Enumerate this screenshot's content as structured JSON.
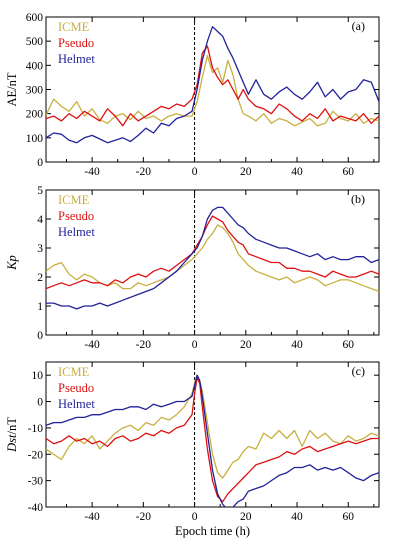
{
  "colors": {
    "ICME": "#c8b040",
    "Pseudo": "#dd1111",
    "Helmet": "#22229a"
  },
  "chart_data": [
    {
      "type": "line",
      "panel_label": "(a)",
      "ylabel": "AE/nT",
      "ylabel_italic": false,
      "xlim": [
        -58,
        72
      ],
      "ylim": [
        0,
        600
      ],
      "yticks": [
        0,
        100,
        200,
        300,
        400,
        500,
        600
      ],
      "ytick_labels": [
        "0",
        "100",
        "200",
        "300",
        "400",
        "500",
        "600"
      ],
      "legend": "top-left",
      "xtick_labels_shown": true,
      "series": [
        {
          "name": "ICME",
          "x": [
            -58,
            -55,
            -52,
            -49,
            -46,
            -43,
            -40,
            -37,
            -34,
            -31,
            -28,
            -25,
            -22,
            -19,
            -16,
            -13,
            -10,
            -7,
            -4,
            -1,
            1,
            3,
            5,
            7,
            9,
            11,
            13,
            15,
            17,
            19,
            21,
            24,
            27,
            30,
            33,
            36,
            39,
            42,
            45,
            48,
            51,
            54,
            57,
            60,
            63,
            66,
            69,
            72
          ],
          "y": [
            195,
            260,
            230,
            210,
            250,
            190,
            220,
            175,
            160,
            190,
            200,
            175,
            210,
            180,
            190,
            170,
            190,
            200,
            190,
            190,
            250,
            350,
            440,
            370,
            390,
            330,
            420,
            360,
            260,
            200,
            190,
            170,
            200,
            160,
            180,
            170,
            150,
            165,
            180,
            150,
            160,
            210,
            180,
            170,
            200,
            160,
            180,
            170
          ]
        },
        {
          "name": "Pseudo",
          "x": [
            -58,
            -55,
            -52,
            -49,
            -46,
            -43,
            -40,
            -37,
            -34,
            -31,
            -28,
            -25,
            -22,
            -19,
            -16,
            -13,
            -10,
            -7,
            -4,
            -1,
            1,
            3,
            5,
            7,
            9,
            11,
            13,
            15,
            17,
            19,
            21,
            24,
            27,
            30,
            33,
            36,
            39,
            42,
            45,
            48,
            51,
            54,
            57,
            60,
            63,
            66,
            69,
            72
          ],
          "y": [
            180,
            190,
            170,
            200,
            180,
            210,
            190,
            170,
            220,
            190,
            150,
            200,
            170,
            190,
            210,
            230,
            220,
            240,
            230,
            260,
            320,
            450,
            480,
            390,
            350,
            320,
            340,
            300,
            260,
            300,
            260,
            230,
            220,
            200,
            240,
            220,
            190,
            170,
            200,
            180,
            220,
            170,
            190,
            180,
            170,
            200,
            160,
            190
          ]
        },
        {
          "name": "Helmet",
          "x": [
            -58,
            -55,
            -52,
            -49,
            -46,
            -43,
            -40,
            -37,
            -34,
            -31,
            -28,
            -25,
            -22,
            -19,
            -16,
            -13,
            -10,
            -7,
            -4,
            -1,
            1,
            3,
            5,
            7,
            9,
            11,
            13,
            15,
            17,
            19,
            21,
            24,
            27,
            30,
            33,
            36,
            39,
            42,
            45,
            48,
            51,
            54,
            57,
            60,
            63,
            66,
            69,
            72
          ],
          "y": [
            100,
            120,
            115,
            90,
            80,
            100,
            110,
            95,
            80,
            90,
            100,
            85,
            110,
            140,
            120,
            160,
            150,
            180,
            190,
            210,
            300,
            420,
            500,
            560,
            540,
            520,
            470,
            430,
            380,
            330,
            280,
            340,
            280,
            260,
            290,
            310,
            280,
            260,
            290,
            330,
            270,
            300,
            260,
            290,
            300,
            340,
            330,
            250
          ]
        }
      ]
    },
    {
      "type": "line",
      "panel_label": "(b)",
      "ylabel": "Kp",
      "ylabel_italic": true,
      "xlim": [
        -58,
        72
      ],
      "ylim": [
        0,
        5
      ],
      "yticks": [
        0,
        1,
        2,
        3,
        4,
        5
      ],
      "ytick_labels": [
        "0",
        "1",
        "2",
        "3",
        "4",
        "5"
      ],
      "legend": "top-left",
      "xtick_labels_shown": true,
      "series": [
        {
          "name": "ICME",
          "x": [
            -58,
            -55,
            -52,
            -49,
            -46,
            -43,
            -40,
            -37,
            -34,
            -31,
            -28,
            -25,
            -22,
            -19,
            -16,
            -13,
            -10,
            -7,
            -4,
            -1,
            1,
            3,
            5,
            7,
            9,
            11,
            13,
            15,
            17,
            19,
            21,
            24,
            27,
            30,
            33,
            36,
            39,
            42,
            45,
            48,
            51,
            54,
            57,
            60,
            63,
            66,
            69,
            72
          ],
          "y": [
            2.2,
            2.4,
            2.5,
            2.1,
            1.9,
            2.1,
            2.0,
            1.8,
            1.7,
            1.8,
            1.6,
            1.6,
            1.8,
            1.7,
            1.8,
            1.9,
            2.0,
            2.2,
            2.4,
            2.6,
            2.8,
            3.0,
            3.3,
            3.5,
            3.8,
            3.7,
            3.5,
            3.2,
            2.8,
            2.6,
            2.4,
            2.2,
            2.1,
            2.0,
            1.9,
            2.0,
            1.8,
            1.9,
            2.0,
            1.9,
            1.7,
            1.8,
            1.9,
            1.9,
            1.8,
            1.7,
            1.6,
            1.5
          ]
        },
        {
          "name": "Pseudo",
          "x": [
            -58,
            -55,
            -52,
            -49,
            -46,
            -43,
            -40,
            -37,
            -34,
            -31,
            -28,
            -25,
            -22,
            -19,
            -16,
            -13,
            -10,
            -7,
            -4,
            -1,
            1,
            3,
            5,
            7,
            9,
            11,
            13,
            15,
            17,
            19,
            21,
            24,
            27,
            30,
            33,
            36,
            39,
            42,
            45,
            48,
            51,
            54,
            57,
            60,
            63,
            66,
            69,
            72
          ],
          "y": [
            1.6,
            1.7,
            1.8,
            1.7,
            1.8,
            1.9,
            1.8,
            1.8,
            1.7,
            1.9,
            1.8,
            2.0,
            2.1,
            2.0,
            2.2,
            2.3,
            2.2,
            2.4,
            2.6,
            2.8,
            3.1,
            3.4,
            3.8,
            4.1,
            4.0,
            3.9,
            3.6,
            3.4,
            3.2,
            3.1,
            2.8,
            2.7,
            2.6,
            2.5,
            2.5,
            2.3,
            2.3,
            2.2,
            2.2,
            2.1,
            2.0,
            2.2,
            2.1,
            2.0,
            2.0,
            2.1,
            2.2,
            2.1
          ]
        },
        {
          "name": "Helmet",
          "x": [
            -58,
            -55,
            -52,
            -49,
            -46,
            -43,
            -40,
            -37,
            -34,
            -31,
            -28,
            -25,
            -22,
            -19,
            -16,
            -13,
            -10,
            -7,
            -4,
            -1,
            1,
            3,
            5,
            7,
            9,
            11,
            13,
            15,
            17,
            19,
            21,
            24,
            27,
            30,
            33,
            36,
            39,
            42,
            45,
            48,
            51,
            54,
            57,
            60,
            63,
            66,
            69,
            72
          ],
          "y": [
            1.1,
            1.1,
            1.0,
            1.0,
            0.9,
            1.0,
            1.0,
            1.1,
            1.0,
            1.1,
            1.2,
            1.3,
            1.4,
            1.5,
            1.6,
            1.8,
            2.0,
            2.2,
            2.5,
            2.8,
            3.0,
            3.4,
            4.0,
            4.3,
            4.4,
            4.4,
            4.2,
            4.0,
            3.8,
            3.7,
            3.5,
            3.3,
            3.2,
            3.1,
            3.0,
            3.0,
            2.9,
            2.8,
            2.7,
            2.8,
            2.6,
            2.7,
            2.6,
            2.6,
            2.7,
            2.7,
            2.5,
            2.6
          ]
        }
      ]
    },
    {
      "type": "line",
      "panel_label": "(c)",
      "ylabel": "Dst/nT",
      "ylabel_italic_prefix": "Dst",
      "xlim": [
        -58,
        72
      ],
      "ylim": [
        -40,
        15
      ],
      "yticks": [
        -40,
        -30,
        -20,
        -10,
        0,
        10
      ],
      "ytick_labels": [
        "-40",
        "-30",
        "-20",
        "-10",
        "0",
        "10"
      ],
      "legend": "top-left",
      "xtick_labels_shown": true,
      "xlabel": "Epoch time (h)",
      "series": [
        {
          "name": "ICME",
          "x": [
            -58,
            -55,
            -52,
            -49,
            -46,
            -43,
            -40,
            -37,
            -34,
            -31,
            -28,
            -25,
            -22,
            -19,
            -16,
            -13,
            -10,
            -7,
            -4,
            -1,
            0,
            1,
            2,
            3,
            5,
            7,
            9,
            11,
            13,
            15,
            17,
            19,
            21,
            24,
            27,
            30,
            33,
            36,
            39,
            42,
            45,
            48,
            51,
            54,
            57,
            60,
            63,
            66,
            69,
            72
          ],
          "y": [
            -18,
            -20,
            -22,
            -17,
            -14,
            -16,
            -13,
            -18,
            -15,
            -12,
            -10,
            -9,
            -11,
            -8,
            -9,
            -6,
            -7,
            -5,
            -2,
            3,
            7,
            10,
            8,
            4,
            -8,
            -20,
            -27,
            -29,
            -26,
            -23,
            -22,
            -19,
            -17,
            -18,
            -12,
            -14,
            -11,
            -14,
            -11,
            -17,
            -11,
            -14,
            -12,
            -15,
            -16,
            -13,
            -15,
            -14,
            -12,
            -13
          ]
        },
        {
          "name": "Pseudo",
          "x": [
            -58,
            -55,
            -52,
            -49,
            -46,
            -43,
            -40,
            -37,
            -34,
            -31,
            -28,
            -25,
            -22,
            -19,
            -16,
            -13,
            -10,
            -7,
            -4,
            -1,
            0,
            1,
            2,
            3,
            5,
            7,
            9,
            11,
            13,
            15,
            17,
            19,
            21,
            24,
            27,
            30,
            33,
            36,
            39,
            42,
            45,
            48,
            51,
            54,
            57,
            60,
            63,
            66,
            69,
            72
          ],
          "y": [
            -14,
            -16,
            -15,
            -13,
            -15,
            -14,
            -16,
            -15,
            -17,
            -14,
            -13,
            -15,
            -14,
            -12,
            -13,
            -11,
            -12,
            -10,
            -9,
            -5,
            3,
            9,
            7,
            -2,
            -18,
            -30,
            -36,
            -38,
            -35,
            -33,
            -31,
            -29,
            -27,
            -24,
            -23,
            -22,
            -21,
            -19,
            -20,
            -18,
            -17,
            -19,
            -18,
            -17,
            -16,
            -15,
            -16,
            -15,
            -14,
            -14
          ]
        },
        {
          "name": "Helmet",
          "x": [
            -58,
            -55,
            -52,
            -49,
            -46,
            -43,
            -40,
            -37,
            -34,
            -31,
            -28,
            -25,
            -22,
            -19,
            -16,
            -13,
            -10,
            -7,
            -4,
            -1,
            0,
            1,
            2,
            3,
            5,
            7,
            9,
            11,
            13,
            15,
            17,
            19,
            21,
            24,
            27,
            30,
            33,
            36,
            39,
            42,
            45,
            48,
            51,
            54,
            57,
            60,
            63,
            66,
            69,
            72
          ],
          "y": [
            -9,
            -8,
            -8,
            -7,
            -6,
            -6,
            -5,
            -5,
            -4,
            -3,
            -3,
            -2,
            -2,
            -3,
            -1,
            -2,
            -1,
            0,
            0,
            2,
            6,
            10,
            8,
            2,
            -12,
            -26,
            -35,
            -39,
            -41,
            -40,
            -38,
            -37,
            -34,
            -33,
            -32,
            -30,
            -28,
            -27,
            -25,
            -25,
            -24,
            -26,
            -25,
            -26,
            -25,
            -27,
            -29,
            -30,
            -28,
            -27
          ]
        }
      ]
    }
  ],
  "xticks": [
    -40,
    -20,
    0,
    20,
    40,
    60
  ],
  "xtick_labels": [
    "-40",
    "-20",
    "0",
    "20",
    "40",
    "60"
  ]
}
